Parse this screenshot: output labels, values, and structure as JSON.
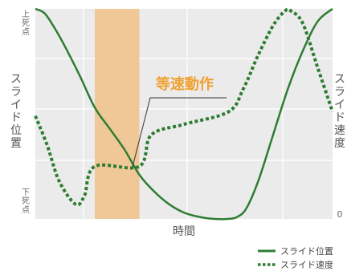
{
  "chart_data": {
    "type": "line",
    "xlabel": "時間",
    "ylabel_left": "スライド位置",
    "ylabel_right": "スライド速度",
    "left_ticks": {
      "top": "上死点",
      "bottom": "下死点"
    },
    "right_ticks": {
      "bottom": "0"
    },
    "annotation": {
      "text": "等速動作",
      "color": "#f0a030",
      "band_color": "#f0c898",
      "band": [
        0.2,
        0.35
      ]
    },
    "grid": true,
    "legend_position": "bottom-right",
    "x_range": [
      0,
      1
    ],
    "y_range": [
      0,
      1
    ],
    "series": [
      {
        "name": "スライド位置",
        "color": "#2e7d32",
        "style": "solid",
        "points": [
          [
            0.0,
            1.0
          ],
          [
            0.03,
            0.98
          ],
          [
            0.06,
            0.92
          ],
          [
            0.1,
            0.82
          ],
          [
            0.15,
            0.68
          ],
          [
            0.2,
            0.53
          ],
          [
            0.25,
            0.43
          ],
          [
            0.3,
            0.33
          ],
          [
            0.35,
            0.21
          ],
          [
            0.4,
            0.13
          ],
          [
            0.45,
            0.07
          ],
          [
            0.5,
            0.03
          ],
          [
            0.55,
            0.01
          ],
          [
            0.6,
            0.0
          ],
          [
            0.65,
            0.0
          ],
          [
            0.68,
            0.01
          ],
          [
            0.71,
            0.05
          ],
          [
            0.75,
            0.18
          ],
          [
            0.8,
            0.4
          ],
          [
            0.85,
            0.62
          ],
          [
            0.9,
            0.8
          ],
          [
            0.95,
            0.94
          ],
          [
            1.0,
            1.0
          ]
        ]
      },
      {
        "name": "スライド速度",
        "color": "#2e7d32",
        "style": "dotted",
        "points": [
          [
            0.0,
            0.49
          ],
          [
            0.04,
            0.35
          ],
          [
            0.08,
            0.18
          ],
          [
            0.135,
            0.07
          ],
          [
            0.165,
            0.11
          ],
          [
            0.2,
            0.25
          ],
          [
            0.35,
            0.25
          ],
          [
            0.39,
            0.4
          ],
          [
            0.5,
            0.45
          ],
          [
            0.65,
            0.51
          ],
          [
            0.7,
            0.62
          ],
          [
            0.75,
            0.78
          ],
          [
            0.8,
            0.92
          ],
          [
            0.84,
            0.99
          ],
          [
            0.86,
            0.99
          ],
          [
            0.9,
            0.93
          ],
          [
            0.95,
            0.72
          ],
          [
            1.0,
            0.51
          ]
        ]
      }
    ]
  }
}
